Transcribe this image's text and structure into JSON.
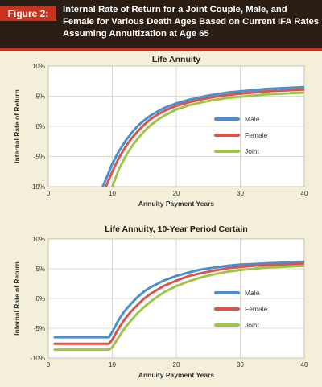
{
  "header": {
    "figure_label": "Figure 2:",
    "title_lines": [
      "Internal Rate of Return for a Joint Couple, Male, and",
      "Female for Various Death Ages Based on Current IFA Rates",
      "Assuming Annuitization at Age 65"
    ]
  },
  "colors": {
    "header_bg": "#2b1e14",
    "accent": "#c8321e",
    "page_bg": "#f4efd9",
    "plot_bg": "#ffffff",
    "grid": "#d4d0c2",
    "male": "#4a8fd0",
    "female": "#d9544a",
    "joint": "#9cc54a"
  },
  "chart_data": [
    {
      "type": "line",
      "title": "Life Annuity",
      "xlabel": "Annuity Payment Years",
      "ylabel": "Internal Rate of Return",
      "xlim": [
        0,
        40
      ],
      "ylim": [
        -10,
        10
      ],
      "xticks": [
        0,
        10,
        20,
        30,
        40
      ],
      "xtick_labels": [
        "0",
        "10",
        "20",
        "30",
        "40"
      ],
      "yticks": [
        -10,
        -5,
        0,
        5,
        10
      ],
      "ytick_labels": [
        "-10%",
        "-5%",
        "0%",
        "5%",
        "10%"
      ],
      "grid": true,
      "legend_position": "right-center",
      "series": [
        {
          "name": "Male",
          "color": "#4a8fd0",
          "x": [
            8.5,
            9,
            10,
            11,
            12,
            13,
            14,
            15,
            16,
            18,
            20,
            22,
            24,
            26,
            28,
            30,
            32,
            34,
            36,
            38,
            40
          ],
          "y": [
            -10,
            -8.8,
            -6.2,
            -4.2,
            -2.5,
            -1.1,
            0.1,
            1.0,
            1.8,
            3.0,
            3.8,
            4.4,
            4.9,
            5.3,
            5.6,
            5.8,
            6.0,
            6.2,
            6.3,
            6.4,
            6.5
          ]
        },
        {
          "name": "Female",
          "color": "#d9544a",
          "x": [
            9,
            10,
            11,
            12,
            13,
            14,
            15,
            16,
            17,
            18,
            20,
            22,
            24,
            26,
            28,
            30,
            32,
            34,
            36,
            38,
            40
          ],
          "y": [
            -10,
            -7.5,
            -5.3,
            -3.5,
            -2.0,
            -0.8,
            0.3,
            1.2,
            1.9,
            2.5,
            3.4,
            4.0,
            4.5,
            4.9,
            5.2,
            5.4,
            5.6,
            5.8,
            5.9,
            6.0,
            6.1
          ]
        },
        {
          "name": "Joint",
          "color": "#9cc54a",
          "x": [
            10,
            11,
            12,
            13,
            14,
            15,
            16,
            17,
            18,
            20,
            22,
            24,
            26,
            28,
            30,
            32,
            34,
            36,
            38,
            40
          ],
          "y": [
            -10,
            -7.2,
            -5.1,
            -3.4,
            -2.0,
            -0.8,
            0.2,
            1.0,
            1.7,
            2.8,
            3.5,
            4.0,
            4.4,
            4.7,
            4.9,
            5.1,
            5.3,
            5.4,
            5.5,
            5.6
          ]
        }
      ]
    },
    {
      "type": "line",
      "title": "Life Annuity, 10-Year Period Certain",
      "xlabel": "Annuity Payment Years",
      "ylabel": "Internal Rate of Return",
      "xlim": [
        0,
        40
      ],
      "ylim": [
        -10,
        10
      ],
      "xticks": [
        0,
        10,
        20,
        30,
        40
      ],
      "xtick_labels": [
        "0",
        "10",
        "20",
        "30",
        "40"
      ],
      "yticks": [
        -10,
        -5,
        0,
        5,
        10
      ],
      "ytick_labels": [
        "-10%",
        "-5%",
        "0%",
        "5%",
        "10%"
      ],
      "grid": true,
      "legend_position": "right-center",
      "series": [
        {
          "name": "Male",
          "color": "#4a8fd0",
          "x": [
            1,
            9.5,
            10,
            11,
            12,
            13,
            14,
            15,
            16,
            18,
            20,
            22,
            24,
            26,
            28,
            30,
            32,
            34,
            36,
            38,
            40
          ],
          "y": [
            -6.5,
            -6.5,
            -5.6,
            -3.6,
            -2.0,
            -0.8,
            0.3,
            1.2,
            1.9,
            3.0,
            3.8,
            4.4,
            4.9,
            5.2,
            5.5,
            5.7,
            5.8,
            5.9,
            6.0,
            6.1,
            6.2
          ]
        },
        {
          "name": "Female",
          "color": "#d9544a",
          "x": [
            1,
            9.5,
            10,
            11,
            12,
            13,
            14,
            15,
            16,
            18,
            20,
            22,
            24,
            26,
            28,
            30,
            32,
            34,
            36,
            38,
            40
          ],
          "y": [
            -7.6,
            -7.6,
            -6.9,
            -5.0,
            -3.4,
            -2.1,
            -1.0,
            0.0,
            0.8,
            2.1,
            3.0,
            3.8,
            4.3,
            4.7,
            5.1,
            5.3,
            5.5,
            5.6,
            5.7,
            5.8,
            5.9
          ]
        },
        {
          "name": "Joint",
          "color": "#9cc54a",
          "x": [
            1,
            9.5,
            10,
            11,
            12,
            13,
            14,
            15,
            16,
            18,
            20,
            22,
            24,
            26,
            28,
            30,
            32,
            34,
            36,
            38,
            40
          ],
          "y": [
            -8.6,
            -8.6,
            -8.2,
            -6.5,
            -4.9,
            -3.6,
            -2.4,
            -1.4,
            -0.5,
            1.0,
            2.1,
            2.9,
            3.6,
            4.1,
            4.5,
            4.8,
            5.0,
            5.2,
            5.3,
            5.4,
            5.5
          ]
        }
      ]
    }
  ]
}
